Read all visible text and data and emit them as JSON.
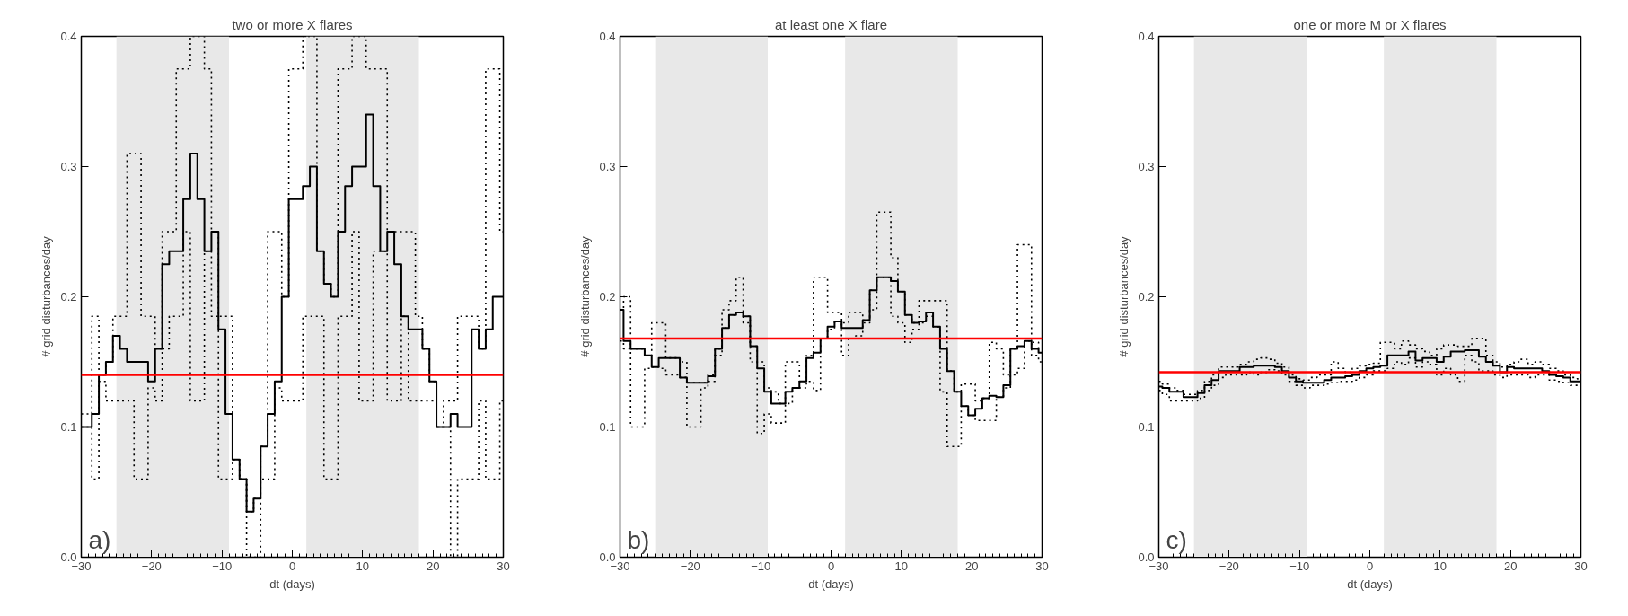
{
  "chart_data": [
    {
      "type": "step",
      "title": "two or more X flares",
      "xlabel": "dt (days)",
      "ylabel": "# grid disturbances/day",
      "annotations": [
        "a)"
      ],
      "x": [
        -30,
        -29,
        -28,
        -27,
        -26,
        -25,
        -24,
        -23,
        -22,
        -21,
        -20,
        -19,
        -18,
        -17,
        -16,
        -15,
        -14,
        -13,
        -12,
        -11,
        -10,
        -9,
        -8,
        -7,
        -6,
        -5,
        -4,
        -3,
        -2,
        -1,
        0,
        1,
        2,
        3,
        4,
        5,
        6,
        7,
        8,
        9,
        10,
        11,
        12,
        13,
        14,
        15,
        16,
        17,
        18,
        19,
        20,
        21,
        22,
        23,
        24,
        25,
        26,
        27,
        28,
        29,
        30
      ],
      "series": [
        {
          "color": "#000000",
          "line_style": "dotted",
          "values": [
            0.11,
            0.11,
            0.185,
            0.14,
            0.15,
            0.185,
            0.185,
            0.31,
            0.31,
            0.185,
            0.185,
            0.16,
            0.25,
            0.25,
            0.375,
            0.375,
            0.4,
            0.4,
            0.375,
            0.25,
            0.185,
            0.185,
            0.075,
            0.06,
            0.035,
            0.045,
            0.085,
            0.25,
            0.25,
            0.2,
            0.375,
            0.375,
            0.4,
            0.4,
            0.235,
            0.21,
            0.2,
            0.375,
            0.375,
            0.4,
            0.4,
            0.375,
            0.375,
            0.375,
            0.25,
            0.25,
            0.25,
            0.25,
            0.185,
            0.16,
            0.135,
            0.1,
            0.12,
            0.12,
            0.185,
            0.185,
            0.185,
            0.16,
            0.375,
            0.375,
            0.25
          ]
        },
        {
          "color": "#000000",
          "line_style": "dotted",
          "values": [
            0.1,
            0.1,
            0.06,
            0.135,
            0.12,
            0.12,
            0.12,
            0.12,
            0.06,
            0.06,
            0.13,
            0.12,
            0.16,
            0.185,
            0.185,
            0.25,
            0.12,
            0.12,
            0.235,
            0.185,
            0.06,
            0.06,
            0.075,
            0.06,
            0.0,
            0.0,
            0.06,
            0.06,
            0.13,
            0.12,
            0.12,
            0.12,
            0.185,
            0.185,
            0.185,
            0.06,
            0.06,
            0.185,
            0.185,
            0.25,
            0.12,
            0.12,
            0.235,
            0.235,
            0.12,
            0.12,
            0.185,
            0.12,
            0.12,
            0.12,
            0.12,
            0.1,
            0.1,
            0.0,
            0.06,
            0.06,
            0.06,
            0.12,
            0.06,
            0.06,
            0.12
          ]
        },
        {
          "color": "#000000",
          "values": [
            0.1,
            0.1,
            0.11,
            0.14,
            0.15,
            0.17,
            0.16,
            0.15,
            0.15,
            0.15,
            0.135,
            0.16,
            0.225,
            0.235,
            0.235,
            0.275,
            0.31,
            0.275,
            0.235,
            0.25,
            0.175,
            0.11,
            0.075,
            0.06,
            0.035,
            0.045,
            0.085,
            0.11,
            0.135,
            0.2,
            0.275,
            0.275,
            0.285,
            0.3,
            0.235,
            0.21,
            0.2,
            0.25,
            0.285,
            0.3,
            0.3,
            0.34,
            0.285,
            0.235,
            0.25,
            0.225,
            0.185,
            0.175,
            0.175,
            0.16,
            0.135,
            0.1,
            0.1,
            0.11,
            0.1,
            0.1,
            0.175,
            0.16,
            0.175,
            0.2,
            0.2
          ]
        }
      ],
      "xlim": [
        -30,
        30
      ],
      "xticks": [
        -30,
        -20,
        -10,
        0,
        10,
        20,
        30
      ],
      "ylim": [
        0,
        0.4
      ],
      "yticks": [
        {
          "value": 0,
          "label": "0.0"
        },
        {
          "value": 0.1,
          "label": "0.1"
        },
        {
          "value": 0.2,
          "label": "0.2"
        },
        {
          "value": 0.3,
          "label": "0.3"
        },
        {
          "value": 0.4,
          "label": "0.4"
        }
      ],
      "ref_lines": [
        {
          "axis": "y",
          "value": 0.14,
          "color": "#ff0000"
        }
      ],
      "bands": [
        {
          "axis": "x",
          "from": -25,
          "to": -9,
          "color": "#e8e8e8"
        },
        {
          "axis": "x",
          "from": 2,
          "to": 18,
          "color": "#e8e8e8"
        }
      ],
      "line_style": "solid"
    },
    {
      "type": "step",
      "title": "at least one X flare",
      "xlabel": "dt (days)",
      "ylabel": "# grid disturbances/day",
      "annotations": [
        "b)"
      ],
      "x": [
        -30,
        -29,
        -28,
        -27,
        -26,
        -25,
        -24,
        -23,
        -22,
        -21,
        -20,
        -19,
        -18,
        -17,
        -16,
        -15,
        -14,
        -13,
        -12,
        -11,
        -10,
        -9,
        -8,
        -7,
        -6,
        -5,
        -4,
        -3,
        -2,
        -1,
        0,
        1,
        2,
        3,
        4,
        5,
        6,
        7,
        8,
        9,
        10,
        11,
        12,
        13,
        14,
        15,
        16,
        17,
        18,
        19,
        20,
        21,
        22,
        23,
        24,
        25,
        26,
        27,
        28,
        29,
        30
      ],
      "series": [
        {
          "color": "#000000",
          "line_style": "dotted",
          "values": [
            0.19,
            0.2,
            0.16,
            0.16,
            0.155,
            0.18,
            0.18,
            0.153,
            0.153,
            0.15,
            0.134,
            0.134,
            0.134,
            0.14,
            0.16,
            0.19,
            0.197,
            0.215,
            0.185,
            0.162,
            0.15,
            0.13,
            0.127,
            0.118,
            0.15,
            0.15,
            0.135,
            0.155,
            0.215,
            0.215,
            0.188,
            0.188,
            0.18,
            0.188,
            0.188,
            0.182,
            0.205,
            0.265,
            0.265,
            0.23,
            0.204,
            0.186,
            0.18,
            0.197,
            0.197,
            0.197,
            0.197,
            0.143,
            0.127,
            0.133,
            0.133,
            0.12,
            0.122,
            0.165,
            0.16,
            0.14,
            0.16,
            0.24,
            0.24,
            0.165,
            0.16
          ]
        },
        {
          "color": "#000000",
          "line_style": "dotted",
          "values": [
            0.166,
            0.16,
            0.1,
            0.1,
            0.145,
            0.146,
            0.145,
            0.14,
            0.14,
            0.138,
            0.1,
            0.1,
            0.13,
            0.135,
            0.155,
            0.176,
            0.186,
            0.188,
            0.18,
            0.15,
            0.095,
            0.11,
            0.103,
            0.103,
            0.118,
            0.13,
            0.13,
            0.135,
            0.128,
            0.168,
            0.175,
            0.181,
            0.155,
            0.168,
            0.17,
            0.18,
            0.19,
            0.215,
            0.215,
            0.185,
            0.18,
            0.165,
            0.175,
            0.18,
            0.185,
            0.177,
            0.127,
            0.085,
            0.085,
            0.116,
            0.109,
            0.105,
            0.105,
            0.105,
            0.123,
            0.13,
            0.14,
            0.145,
            0.166,
            0.155,
            0.15
          ]
        },
        {
          "color": "#000000",
          "values": [
            0.19,
            0.166,
            0.16,
            0.16,
            0.155,
            0.146,
            0.153,
            0.153,
            0.153,
            0.138,
            0.134,
            0.134,
            0.134,
            0.139,
            0.16,
            0.176,
            0.186,
            0.188,
            0.185,
            0.162,
            0.145,
            0.127,
            0.118,
            0.118,
            0.127,
            0.13,
            0.135,
            0.153,
            0.157,
            0.168,
            0.177,
            0.181,
            0.176,
            0.176,
            0.176,
            0.182,
            0.205,
            0.215,
            0.215,
            0.212,
            0.204,
            0.186,
            0.18,
            0.181,
            0.188,
            0.177,
            0.16,
            0.143,
            0.127,
            0.116,
            0.109,
            0.114,
            0.122,
            0.124,
            0.123,
            0.132,
            0.16,
            0.162,
            0.166,
            0.16,
            0.157
          ]
        }
      ],
      "xlim": [
        -30,
        30
      ],
      "xticks": [
        -30,
        -20,
        -10,
        0,
        10,
        20,
        30
      ],
      "ylim": [
        0,
        0.4
      ],
      "yticks": [
        {
          "value": 0,
          "label": "0.0"
        },
        {
          "value": 0.1,
          "label": "0.1"
        },
        {
          "value": 0.2,
          "label": "0.2"
        },
        {
          "value": 0.3,
          "label": "0.3"
        },
        {
          "value": 0.4,
          "label": "0.4"
        }
      ],
      "ref_lines": [
        {
          "axis": "y",
          "value": 0.168,
          "color": "#ff0000"
        }
      ],
      "bands": [
        {
          "axis": "x",
          "from": -25,
          "to": -9,
          "color": "#e8e8e8"
        },
        {
          "axis": "x",
          "from": 2,
          "to": 18,
          "color": "#e8e8e8"
        }
      ],
      "line_style": "solid"
    },
    {
      "type": "step",
      "title": "one or more M or X flares",
      "xlabel": "dt (days)",
      "ylabel": "# grid disturbances/day",
      "annotations": [
        "c)"
      ],
      "x": [
        -30,
        -29,
        -28,
        -27,
        -26,
        -25,
        -24,
        -23,
        -22,
        -21,
        -20,
        -19,
        -18,
        -17,
        -16,
        -15,
        -14,
        -13,
        -12,
        -11,
        -10,
        -9,
        -8,
        -7,
        -6,
        -5,
        -4,
        -3,
        -2,
        -1,
        0,
        1,
        2,
        3,
        4,
        5,
        6,
        7,
        8,
        9,
        10,
        11,
        12,
        13,
        14,
        15,
        16,
        17,
        18,
        19,
        20,
        21,
        22,
        23,
        24,
        25,
        26,
        27,
        28,
        29,
        30
      ],
      "series": [
        {
          "color": "#000000",
          "line_style": "dotted",
          "values": [
            0.135,
            0.133,
            0.13,
            0.128,
            0.125,
            0.125,
            0.128,
            0.135,
            0.14,
            0.146,
            0.146,
            0.146,
            0.148,
            0.15,
            0.152,
            0.153,
            0.152,
            0.149,
            0.146,
            0.14,
            0.137,
            0.136,
            0.138,
            0.14,
            0.14,
            0.15,
            0.145,
            0.142,
            0.145,
            0.147,
            0.148,
            0.149,
            0.165,
            0.165,
            0.16,
            0.166,
            0.163,
            0.16,
            0.158,
            0.155,
            0.16,
            0.163,
            0.163,
            0.162,
            0.162,
            0.168,
            0.168,
            0.155,
            0.15,
            0.146,
            0.148,
            0.15,
            0.152,
            0.148,
            0.15,
            0.148,
            0.145,
            0.143,
            0.14,
            0.138,
            0.137
          ]
        },
        {
          "color": "#000000",
          "line_style": "dotted",
          "values": [
            0.128,
            0.125,
            0.12,
            0.12,
            0.12,
            0.12,
            0.122,
            0.128,
            0.132,
            0.138,
            0.14,
            0.14,
            0.14,
            0.142,
            0.14,
            0.142,
            0.144,
            0.143,
            0.14,
            0.135,
            0.132,
            0.13,
            0.132,
            0.132,
            0.133,
            0.134,
            0.135,
            0.135,
            0.136,
            0.138,
            0.14,
            0.143,
            0.143,
            0.145,
            0.15,
            0.148,
            0.153,
            0.146,
            0.15,
            0.148,
            0.14,
            0.145,
            0.14,
            0.135,
            0.155,
            0.15,
            0.143,
            0.143,
            0.14,
            0.138,
            0.14,
            0.14,
            0.14,
            0.138,
            0.14,
            0.14,
            0.136,
            0.135,
            0.134,
            0.132,
            0.132
          ]
        },
        {
          "color": "#000000",
          "values": [
            0.131,
            0.13,
            0.127,
            0.127,
            0.123,
            0.123,
            0.126,
            0.132,
            0.136,
            0.143,
            0.143,
            0.143,
            0.146,
            0.146,
            0.147,
            0.147,
            0.147,
            0.146,
            0.143,
            0.138,
            0.135,
            0.134,
            0.134,
            0.134,
            0.136,
            0.138,
            0.138,
            0.139,
            0.14,
            0.143,
            0.145,
            0.146,
            0.147,
            0.155,
            0.155,
            0.155,
            0.158,
            0.151,
            0.153,
            0.153,
            0.15,
            0.154,
            0.158,
            0.158,
            0.159,
            0.159,
            0.154,
            0.15,
            0.147,
            0.142,
            0.146,
            0.145,
            0.145,
            0.145,
            0.145,
            0.143,
            0.14,
            0.139,
            0.138,
            0.135,
            0.135
          ]
        }
      ],
      "xlim": [
        -30,
        30
      ],
      "xticks": [
        -30,
        -20,
        -10,
        0,
        10,
        20,
        30
      ],
      "ylim": [
        0,
        0.4
      ],
      "yticks": [
        {
          "value": 0,
          "label": "0.0"
        },
        {
          "value": 0.1,
          "label": "0.1"
        },
        {
          "value": 0.2,
          "label": "0.2"
        },
        {
          "value": 0.3,
          "label": "0.3"
        },
        {
          "value": 0.4,
          "label": "0.4"
        }
      ],
      "ref_lines": [
        {
          "axis": "y",
          "value": 0.142,
          "color": "#ff0000"
        }
      ],
      "bands": [
        {
          "axis": "x",
          "from": -25,
          "to": -9,
          "color": "#e8e8e8"
        },
        {
          "axis": "x",
          "from": 2,
          "to": 18,
          "color": "#e8e8e8"
        }
      ],
      "line_style": "solid"
    }
  ]
}
